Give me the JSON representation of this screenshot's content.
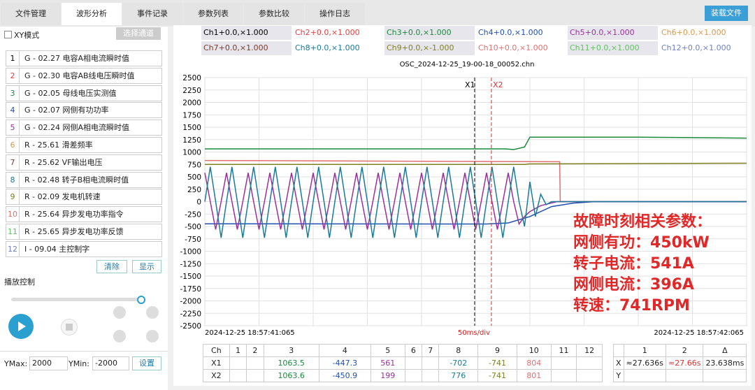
{
  "tabs": [
    "文件管理",
    "波形分析",
    "事件记录",
    "参数列表",
    "参数比较",
    "操作日志"
  ],
  "active_tab": 1,
  "load_button": "装载文件",
  "xy_mode": "XY模式",
  "select_channel": "选择通道",
  "channels": [
    {
      "num": 1,
      "label": "G - 02.27 电容A相电流瞬时值",
      "color": "#000000"
    },
    {
      "num": 2,
      "label": "G - 02.30 电容AB线电压瞬时值",
      "color": "#e04040"
    },
    {
      "num": 3,
      "label": "G - 02.05 母线电压实测值",
      "color": "#1a8a3a"
    },
    {
      "num": 4,
      "label": "G - 02.07 网侧有功功率",
      "color": "#2050b0"
    },
    {
      "num": 5,
      "label": "G - 02.24 网侧A相电流瞬时值",
      "color": "#9b309b"
    },
    {
      "num": 6,
      "label": "R - 25.61 滑差频率",
      "color": "#d89a50"
    },
    {
      "num": 7,
      "label": "R - 25.62 VF输出电压",
      "color": "#7a3a2a"
    },
    {
      "num": 8,
      "label": "R - 02.48 转子B相电流瞬时值",
      "color": "#1a7a9a"
    },
    {
      "num": 9,
      "label": "R - 02.09 发电机转速",
      "color": "#808020"
    },
    {
      "num": 10,
      "label": "R - 25.64 异步发电功率指令",
      "color": "#e07070"
    },
    {
      "num": 11,
      "label": "R - 25.65 异步发电功率反馈",
      "color": "#60c060"
    },
    {
      "num": 12,
      "label": "I - 09.04 主控制字",
      "color": "#7080c0"
    }
  ],
  "clear_button": "清除",
  "show_button": "显示",
  "playback": "播放控制",
  "ymax_label": "YMax:",
  "ymax": 2000,
  "ymin_label": "YMin:",
  "ymin": -2000,
  "set_button": "设置",
  "legend": [
    "Ch1+0.0,×1.000",
    "Ch2+0.0,×1.000",
    "Ch3+0.0,×1.000",
    "Ch4+0.0,×1.000",
    "Ch5+0.0,×1.000",
    "Ch6+0.0,×1.000",
    "Ch7+0.0,×1.000",
    "Ch8+0.0,×1.000",
    "Ch9+0.0,×-1.000",
    "Ch10+0.0,×1.000",
    "Ch11+0.0,×1.000",
    "Ch12+0.0,×1.000"
  ],
  "plot": {
    "title": "OSC_2024-12-25_19-00-18_00052.chn",
    "ylim": [
      -2500,
      2500
    ],
    "yticks": [
      -2500,
      -2250,
      -2000,
      -1750,
      -1500,
      -1250,
      -1000,
      -750,
      -500,
      -250,
      0,
      250,
      500,
      750,
      1000,
      1250,
      1500,
      1750,
      2000,
      2250,
      2500
    ],
    "xlim": [
      0,
      1000
    ],
    "xticks": [
      0,
      100,
      200,
      300,
      400,
      500,
      600,
      700,
      800,
      900,
      1000
    ],
    "start_label": "2024-12-25  18:57:41:065",
    "end_label": "2024-12-25  18:57:42:065",
    "div_label": "50ms/div",
    "cursors": [
      {
        "label": "X1",
        "x": 498,
        "color": "#000000"
      },
      {
        "label": "X2",
        "x": 529,
        "color": "#e03030"
      }
    ],
    "series": [
      {
        "color": "#e07070",
        "x": [
          0,
          500,
          655,
          656,
          1000
        ],
        "values": [
          830,
          810,
          804,
          0,
          0
        ]
      },
      {
        "color": "#808020",
        "x": [
          0,
          590,
          600,
          1000
        ],
        "values": [
          750,
          750,
          760,
          775
        ]
      },
      {
        "color": "#1a8a3a",
        "x": [
          0,
          555,
          570,
          590,
          600,
          800,
          900,
          1000
        ],
        "values": [
          1063,
          1063,
          1050,
          1100,
          1300,
          1300,
          1290,
          1280
        ]
      },
      {
        "color": "#2050b0",
        "x": [
          0,
          520,
          560,
          600,
          640,
          680,
          720,
          1000
        ],
        "values": [
          -447,
          -450,
          -430,
          -300,
          -100,
          -30,
          0,
          0
        ]
      },
      {
        "color": "#9b309b",
        "x": [
          0,
          10,
          20,
          30,
          40,
          50,
          60,
          70,
          80,
          90,
          100,
          110,
          120,
          130,
          140,
          150,
          160,
          170,
          180,
          190,
          200,
          210,
          220,
          230,
          240,
          250,
          260,
          270,
          280,
          290,
          300,
          310,
          320,
          330,
          340,
          350,
          360,
          370,
          380,
          390,
          400,
          410,
          420,
          430,
          440,
          450,
          460,
          470,
          480,
          490,
          500,
          510,
          520,
          530,
          540,
          550,
          560,
          570,
          580,
          590,
          600,
          620,
          650,
          1000
        ],
        "values": [
          580,
          0,
          -560,
          0,
          580,
          0,
          -560,
          0,
          580,
          0,
          -560,
          0,
          580,
          0,
          -560,
          0,
          580,
          0,
          -560,
          0,
          580,
          0,
          -560,
          0,
          580,
          0,
          -560,
          0,
          580,
          0,
          -560,
          0,
          580,
          0,
          -560,
          0,
          580,
          0,
          -560,
          0,
          580,
          0,
          -560,
          0,
          580,
          0,
          -560,
          0,
          580,
          0,
          -560,
          0,
          580,
          0,
          -560,
          0,
          580,
          0,
          -450,
          -300,
          -200,
          -80,
          0,
          0
        ]
      },
      {
        "color": "#1a7a9a",
        "x": [
          0,
          10,
          20,
          30,
          40,
          50,
          60,
          70,
          80,
          90,
          100,
          110,
          120,
          130,
          140,
          150,
          160,
          170,
          180,
          190,
          200,
          210,
          220,
          230,
          240,
          250,
          260,
          270,
          280,
          290,
          300,
          310,
          320,
          330,
          340,
          350,
          360,
          370,
          380,
          390,
          400,
          410,
          420,
          430,
          440,
          450,
          460,
          470,
          480,
          490,
          500,
          510,
          520,
          530,
          540,
          550,
          560,
          570,
          580,
          590,
          600,
          610,
          620,
          630,
          640,
          1000
        ],
        "values": [
          0,
          700,
          0,
          -730,
          0,
          700,
          0,
          -730,
          0,
          700,
          0,
          -730,
          0,
          700,
          0,
          -730,
          0,
          700,
          0,
          -730,
          0,
          700,
          0,
          -730,
          0,
          700,
          0,
          -730,
          0,
          700,
          0,
          -730,
          0,
          700,
          0,
          -730,
          0,
          700,
          0,
          -730,
          0,
          700,
          0,
          -730,
          0,
          700,
          0,
          -730,
          0,
          700,
          0,
          -730,
          0,
          700,
          0,
          -730,
          0,
          700,
          0,
          -500,
          400,
          -300,
          150,
          -60,
          0,
          0
        ]
      }
    ]
  },
  "annotation": [
    "故障时刻相关参数：",
    "网侧有功：450kW",
    "转子电流：541A",
    "网侧电流：396A",
    "转速：741RPM"
  ],
  "cursor_table": {
    "header": [
      "Ch",
      1,
      2,
      3,
      4,
      5,
      6,
      7,
      8,
      9,
      10,
      11,
      12
    ],
    "rows": [
      {
        "label": "X1",
        "cells": {
          "3": 1063.5,
          "4": -447.3,
          "5": 561,
          "8": -702,
          "9": -741,
          "10": 804
        }
      },
      {
        "label": "X2",
        "cells": {
          "3": 1063.6,
          "4": -450.9,
          "5": 199,
          "8": 776,
          "9": -741,
          "10": 801
        }
      }
    ]
  },
  "delta_table": {
    "header": [
      "1",
      "2",
      "Δ"
    ],
    "rows": [
      {
        "label": "X",
        "cells": [
          "≈27.636s",
          "≈27.66s",
          "23.638ms"
        ]
      },
      {
        "label": "Y"
      }
    ]
  }
}
